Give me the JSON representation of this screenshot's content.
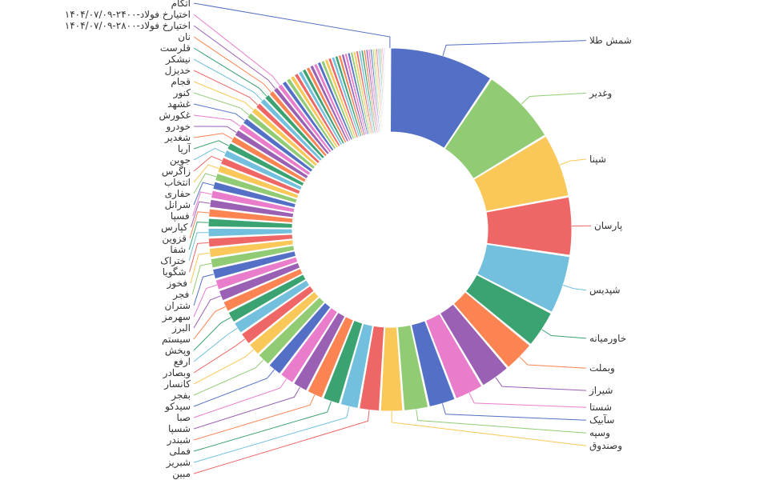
{
  "chart_data": {
    "type": "donut",
    "title": "",
    "legend": "none",
    "labels_shown": [
      "شمش طلا",
      "وغدیر",
      "شپنا",
      "پارسان",
      "شپدیس",
      "خاورمیانه",
      "وبملت",
      "شیراز",
      "شستا",
      "سآبیک",
      "وسپه",
      "وصندوق",
      "مبین",
      "شبریز",
      "فملی",
      "شبندر",
      "شسپا",
      "صبا",
      "سیدکو",
      "بفجر",
      "کانسار",
      "وبصادر",
      "ارفع",
      "وپخش",
      "سیستم",
      "البرز",
      "سهرمز",
      "شتران",
      "فجر",
      "فخوز",
      "شگویا",
      "ختراک",
      "شفا",
      "قزوین",
      "کپارس",
      "فسپا",
      "شرانل",
      "حفاری",
      "انتخاب",
      "زاگرس",
      "جوین",
      "آریا",
      "شغدیر",
      "خودرو",
      "غکورش",
      "غشهد",
      "کنور",
      "قجام",
      "خدیزل",
      "نیشکر",
      "قلرست",
      "نان",
      "اختیارخ فولاد-۲۸۰۰-۱۴۰۴/۰۷/۰۹",
      "اختیارخ فولاد-۲۴۰۰-۱۴۰۴/۰۷/۰۹",
      "اتکام"
    ],
    "series": [
      {
        "values": [
          100,
          74,
          61,
          56,
          56,
          36,
          30,
          29,
          28,
          26,
          24,
          22,
          20,
          18,
          17,
          16,
          15,
          14.5,
          14,
          13.5,
          13,
          12.5,
          12,
          11.5,
          11,
          11,
          10.5,
          10.5,
          10,
          9.8,
          9.6,
          9.4,
          9.2,
          9,
          8.8,
          8.6,
          8.4,
          8.2,
          8,
          7.8,
          7.6,
          7.4,
          7.2,
          7,
          6.8,
          6.6,
          6.4,
          6.2,
          6,
          5.8,
          5.6,
          5.4,
          5.2,
          5,
          4.8,
          4.6,
          4.4,
          4.3,
          4.2,
          4.1,
          4.0,
          3.9,
          3.8,
          3.7,
          3.6,
          3.5,
          3.4,
          3.3,
          3.2,
          3.1,
          3.0,
          2.9,
          2.8,
          2.7,
          2.6,
          2.5,
          2.4,
          2.3,
          2.2,
          2.1,
          2.0,
          1.9,
          1.8,
          1.7,
          1.6,
          1.5,
          1.4,
          1.3,
          1.2,
          1.1,
          1.0,
          0.9,
          0.8,
          0.7,
          0.6,
          0.5,
          0.4,
          0.3
        ]
      }
    ],
    "colors": [
      "#5470c6",
      "#91cc75",
      "#fac858",
      "#ee6666",
      "#73c0de",
      "#3ba272",
      "#fc8452",
      "#9a60b4",
      "#ea7ccc"
    ]
  }
}
